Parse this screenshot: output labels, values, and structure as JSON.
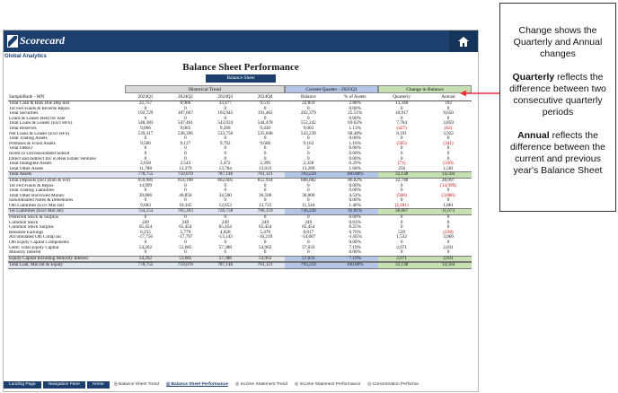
{
  "app": {
    "brand": "Scorecard",
    "section": "Global Analytics",
    "title": "Balance Sheet Performance",
    "badge": "Balance Sheet"
  },
  "groups": {
    "historical": "Historical Trend",
    "current": "Current Quarter - 2025Q1",
    "change": "Change in Balance"
  },
  "header": [
    "SampleBank - MN",
    "2024Q1",
    "2024Q2",
    "2024Q3",
    "2024Q4",
    "Balance",
    "% of Assets",
    "Quarterly",
    "Annual"
  ],
  "rows": [
    [
      "Total Cash & Bals Due Dep Inst",
      "22,757",
      "8,966",
      "33,477",
      "9,511",
      "22,859",
      "2.88%",
      "13,348",
      "102"
    ],
    [
      "Tot Fed Funds & Reverse Repos",
      "0",
      "0",
      "0",
      "0",
      "0",
      "0.00%",
      "0",
      "0"
    ],
    [
      "Total Securities",
      "192,729",
      "187,667",
      "193,945",
      "191,462",
      "202,379",
      "25.51%",
      "10,917",
      "9,650"
    ],
    [
      "Loans & Leases Held for Sale",
      "0",
      "0",
      "0",
      "0",
      "0",
      "0.00%",
      "0",
      "0"
    ],
    [
      "Total Loans & Leases (Excl HFS)",
      "548,383",
      "547,461",
      "543,024",
      "544,478",
      "552,242",
      "69.62%",
      "7,764",
      "3,859"
    ],
    [
      "Total Reserves",
      "9,066",
      "9,065",
      "9,268",
      "9,430",
      "9,003",
      "1.13%",
      "(427)",
      "(63)"
    ],
    [
      "Net Loans & Leases (Excl HFS)",
      "539,317",
      "538,396",
      "533,756",
      "535,048",
      "543,239",
      "68.48%",
      "8,191",
      "3,922"
    ],
    [
      "Total Trading Assets",
      "0",
      "0",
      "0",
      "0",
      "0",
      "0.00%",
      "0",
      "0"
    ],
    [
      "Premises & Fixed Assets",
      "9,506",
      "9,127",
      "9,792",
      "9,668",
      "9,163",
      "1.16%",
      "(505)",
      "(341)"
    ],
    [
      "Total OREO",
      "0",
      "0",
      "0",
      "0",
      "0",
      "0.00%",
      "0",
      "0"
    ],
    [
      "Invest in Unconsolidated Subsid",
      "0",
      "0",
      "0",
      "0",
      "0",
      "0.00%",
      "0",
      "0"
    ],
    [
      "Direct and Indirect Inv in Real Estate Ventures",
      "0",
      "0",
      "0",
      "0",
      "0",
      "0.00%",
      "0",
      "0"
    ],
    [
      "Total Intangible Assets",
      "2,658",
      "2,543",
      "2,472",
      "2,399",
      "2,328",
      "0.29%",
      "(71)",
      "(330)"
    ],
    [
      "Total Other Assets",
      "11,788",
      "12,379",
      "13,784",
      "13,033",
      "13,289",
      "1.68%",
      "256",
      "1,501"
    ],
    [
      "Total Assets",
      "778,755",
      "759,078",
      "787,146",
      "761,121",
      "793,259",
      "100.00%",
      "32,138",
      "14,504"
    ],
    [
      "Total Deposits (Incl Dom & For)",
      "659,985",
      "654,198",
      "662,605",
      "655,934",
      "688,682",
      "86.82%",
      "32,748",
      "28,697"
    ],
    [
      "Tot Fed Funds & Repos",
      "14,999",
      "0",
      "0",
      "0",
      "0",
      "0.00%",
      "0",
      "(14,999)"
    ],
    [
      "Total Trading Liabilities",
      "0",
      "0",
      "0",
      "0",
      "0",
      "0.00%",
      "0",
      "0"
    ],
    [
      "Total Other Borrowed Money",
      "39,886",
      "40,850",
      "34,500",
      "36,500",
      "36,000",
      "4.54%",
      "(500)",
      "(3,886)"
    ],
    [
      "Subordinated Notes & Debentures",
      "0",
      "0",
      "0",
      "0",
      "0",
      "0.00%",
      "0",
      "0"
    ],
    [
      "Oth Liabilities (Excl Min Int)",
      "9,683",
      "10,345",
      "12,653",
      "13,725",
      "11,544",
      "1.46%",
      "(2,181)",
      "1,861"
    ],
    [
      "Tot Liabilities (Excl Min Int)",
      "724,553",
      "705,393",
      "729,758",
      "706,159",
      "736,226",
      "92.81%",
      "30,067",
      "11,673"
    ],
    [
      "Preferred Stock & Surplus",
      "0",
      "0",
      "0",
      "0",
      "0",
      "0.00%",
      "0",
      "0"
    ],
    [
      "Common Stock",
      "249",
      "249",
      "249",
      "249",
      "249",
      "0.03%",
      "0",
      "0"
    ],
    [
      "Common Stock Surplus",
      "65,454",
      "65,454",
      "65,454",
      "65,454",
      "65,454",
      "8.25%",
      "0",
      "0"
    ],
    [
      "Retained Earnings",
      "6,255",
      "5,779",
      "4,828",
      "5,478",
      "6,017",
      "0.76%",
      "539",
      "(238)"
    ],
    [
      "Accumulated Oth Comp Inc",
      "-17,756",
      "-17,797",
      "-13,143",
      "-16,219",
      "-14,687",
      "-1.85%",
      "1,532",
      "3,069"
    ],
    [
      "Oth Equity Capital Components",
      "0",
      "0",
      "0",
      "0",
      "0",
      "0.00%",
      "0",
      "0"
    ],
    [
      "GRB: Total Equity Capital",
      "54,202",
      "53,685",
      "57,388",
      "54,962",
      "57,033",
      "7.19%",
      "2,071",
      "2,831"
    ],
    [
      "Minority Interest",
      "0",
      "0",
      "0",
      "0",
      "0",
      "0.00%",
      "0",
      "0"
    ],
    [
      "Equity Capital Including Minority Interest",
      "54,202",
      "53,685",
      "57,388",
      "54,962",
      "57,033",
      "7.19%",
      "2,071",
      "2,831"
    ],
    [
      "Total Liab, Min Int & Equity",
      "778,755",
      "759,078",
      "787,146",
      "761,121",
      "793,259",
      "100.00%",
      "32,138",
      "14,504"
    ]
  ],
  "tabs": [
    {
      "label": "Landing Page",
      "kind": "nav"
    },
    {
      "label": "Navigation Pane",
      "kind": "nav"
    },
    {
      "label": "Home",
      "kind": "nav"
    },
    {
      "label": "Balance Sheet Trend",
      "kind": "sheet"
    },
    {
      "label": "Balance Sheet Performance",
      "kind": "active"
    },
    {
      "label": "Income Statement Trend",
      "kind": "sheet"
    },
    {
      "label": "Income Statement Performance",
      "kind": "sheet"
    },
    {
      "label": "Concentration Performa",
      "kind": "sheet"
    }
  ],
  "callout": {
    "line1": "Change shows the Quarterly and Annual changes",
    "q_bold": "Quarterly",
    "q_rest": " reflects the difference between two consecutive quarterly periods",
    "a_bold": "Annual",
    "a_rest": " reflects the difference between the current and previous year's Balance Sheet"
  },
  "colors": {
    "brand": "#1d3f6e",
    "current": "#b4c6e7",
    "change": "#c6e0b4",
    "negative": "#d00000",
    "arrow": "#e8333a"
  },
  "icons": {
    "home": "home-icon",
    "tab": "sheet-tab-icon"
  }
}
